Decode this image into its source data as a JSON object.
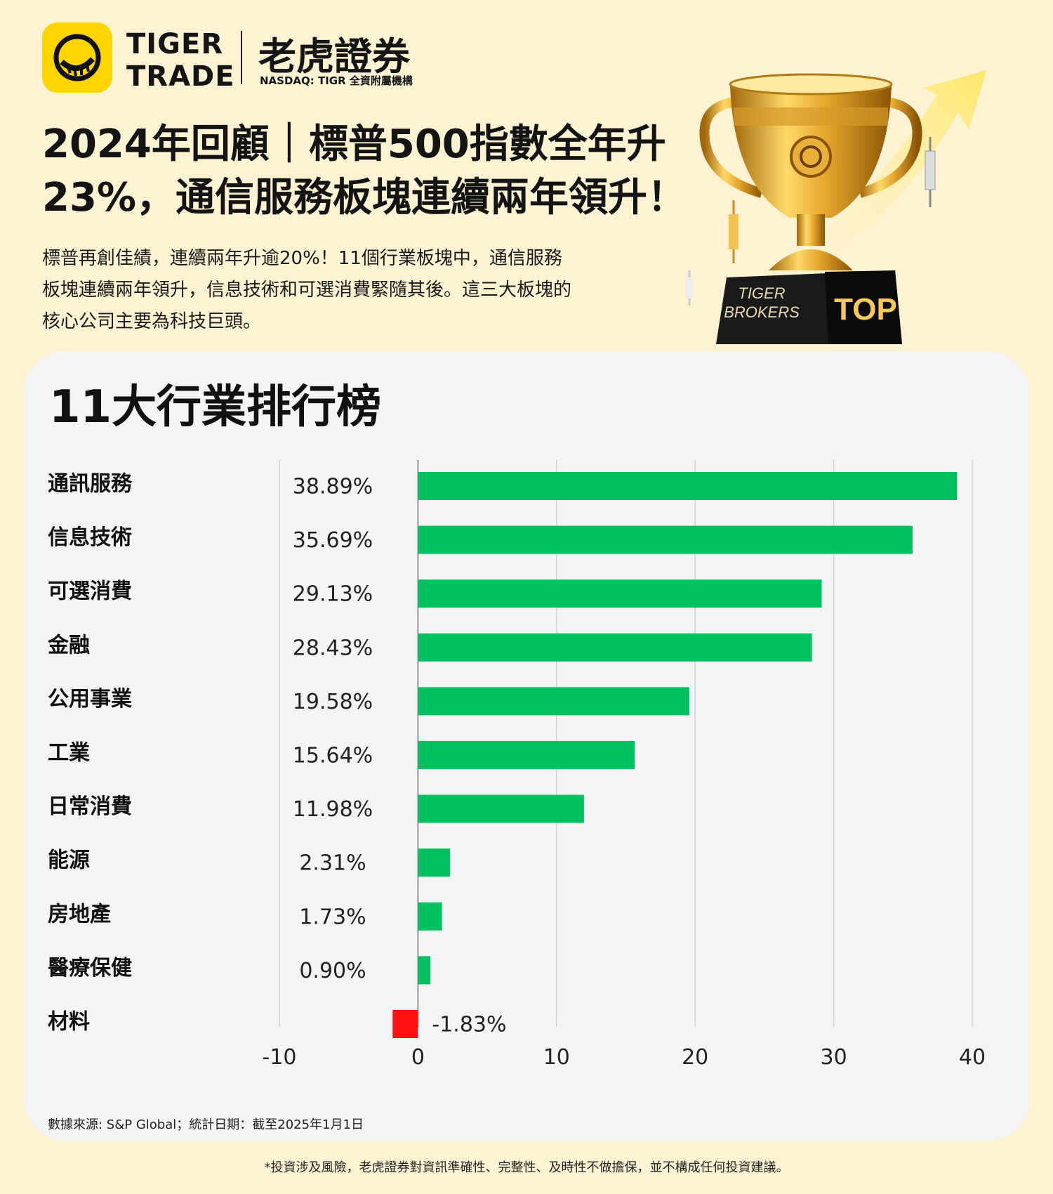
{
  "brand": {
    "name_en_line1": "TIGER",
    "name_en_line2": "TRADE",
    "name_zh": "老虎證券",
    "subtitle": "NASDAQ: TIGR 全資附屬機構",
    "logo_icon": "tiger-logo-icon"
  },
  "headline": {
    "line1": "2024年回顧｜標普500指數全年升",
    "line2": "23%，通信服務板塊連續兩年領升！"
  },
  "intro": {
    "line1": "標普再創佳績，連續兩年升逾20%！11個行業板塊中，通信服務",
    "line2": "板塊連續兩年領升，信息技術和可選消費緊隨其後。這三大板塊的",
    "line3": "核心公司主要為科技巨頭。"
  },
  "trophy": {
    "base_text_line1": "TIGER",
    "base_text_line2": "BROKERS",
    "badge": "TOP"
  },
  "chart_data": {
    "type": "bar",
    "orientation": "horizontal",
    "title": "11大行業排行榜",
    "categories": [
      "通訊服務",
      "信息技術",
      "可選消費",
      "金融",
      "公用事業",
      "工業",
      "日常消費",
      "能源",
      "房地產",
      "醫療保健",
      "材料"
    ],
    "values": [
      38.89,
      35.69,
      29.13,
      28.43,
      19.58,
      15.64,
      11.98,
      2.31,
      1.73,
      0.9,
      -1.83
    ],
    "value_labels": [
      "38.89%",
      "35.69%",
      "29.13%",
      "28.43%",
      "19.58%",
      "15.64%",
      "11.98%",
      "2.31%",
      "1.73%",
      "0.90%",
      "-1.83%"
    ],
    "xlim": [
      -10,
      40
    ],
    "xticks": [
      -10,
      0,
      10,
      20,
      30,
      40
    ],
    "grid": true,
    "colors": {
      "positive": "#00c060",
      "negative": "#ff1010"
    }
  },
  "footer": {
    "source": "數據來源: S&P Global；統計日期：截至2025年1月1日",
    "disclaimer": "*投資涉及風險，老虎證券對資訊準確性、完整性、及時性不做擔保，並不構成任何投資建議。"
  }
}
